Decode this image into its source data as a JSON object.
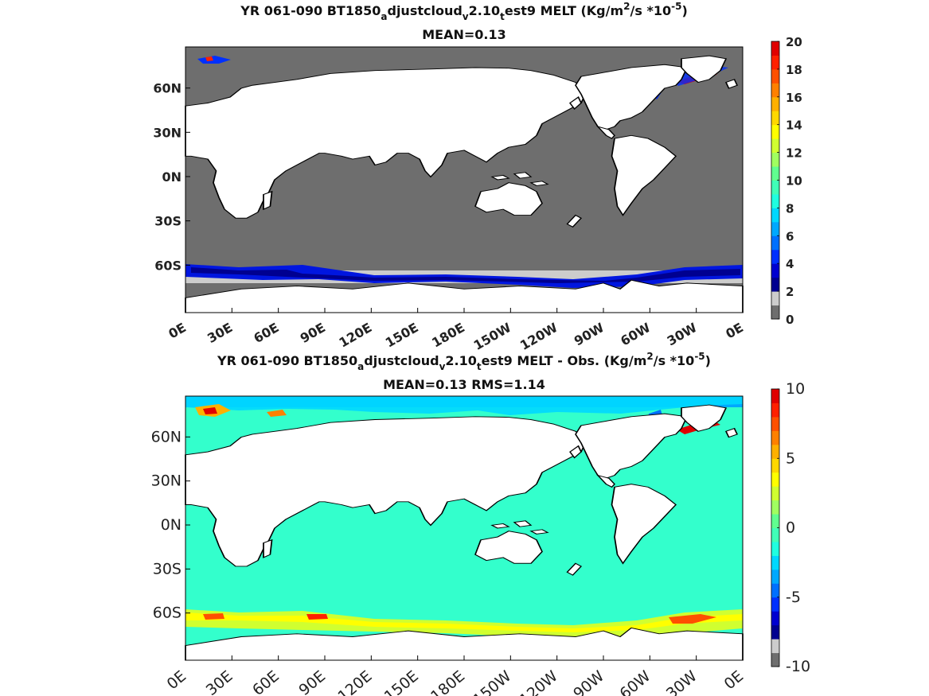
{
  "chart_data": [
    {
      "type": "heatmap",
      "title": {
        "parts": [
          "YR 061-090 BT1850",
          "a",
          "djustcloud",
          "v",
          "2.10",
          "t",
          "est9 MELT (Kg/m",
          "2",
          "/s   *10",
          "-5",
          ")"
        ],
        "line2": "MEAN=0.13"
      },
      "y_ticks": [
        "60N",
        "30N",
        "0N",
        "30S",
        "60S"
      ],
      "x_ticks": [
        "0E",
        "30E",
        "60E",
        "90E",
        "120E",
        "150E",
        "180E",
        "150W",
        "120W",
        "90W",
        "60W",
        "30W",
        "0E"
      ],
      "colorbar": {
        "ticks": [
          "0",
          "2",
          "4",
          "6",
          "8",
          "10",
          "12",
          "14",
          "16",
          "18",
          "20"
        ],
        "colors": [
          "#6e6e6e",
          "#cccccc",
          "#000090",
          "#0000d0",
          "#0030ff",
          "#0070ff",
          "#00a8ff",
          "#00d8ff",
          "#20ffe0",
          "#40ffb8",
          "#60ff90",
          "#a0ff60",
          "#d0ff30",
          "#ffff00",
          "#ffd800",
          "#ffb000",
          "#ff8000",
          "#ff5000",
          "#ff2000",
          "#e00000"
        ],
        "range": [
          0,
          20
        ]
      },
      "mean": 0.13
    },
    {
      "type": "heatmap",
      "title": {
        "parts": [
          "YR 061-090 BT1850",
          "a",
          "djustcloud",
          "v",
          "2.10",
          "t",
          "est9 MELT - Obs. (Kg/m",
          "2",
          "/s *10",
          "-5",
          ")"
        ],
        "line2": "MEAN=0.13   RMS=1.14"
      },
      "y_ticks": [
        "60N",
        "30N",
        "0N",
        "30S",
        "60S"
      ],
      "x_ticks": [
        "0E",
        "30E",
        "60E",
        "90E",
        "120E",
        "150E",
        "180E",
        "150W",
        "120W",
        "90W",
        "60W",
        "30W",
        "0E"
      ],
      "colorbar": {
        "ticks": [
          "10",
          "5",
          "0",
          "-5",
          "-10"
        ],
        "colors": [
          "#6e6e6e",
          "#cccccc",
          "#000090",
          "#0000d0",
          "#0030ff",
          "#0070ff",
          "#00a8ff",
          "#00d8ff",
          "#20ffe0",
          "#40ffb8",
          "#60ff90",
          "#a0ff60",
          "#d0ff30",
          "#ffff00",
          "#ffd800",
          "#ffb000",
          "#ff8000",
          "#ff5000",
          "#ff2000",
          "#e00000"
        ],
        "range": [
          -10,
          10
        ]
      },
      "mean": 0.13,
      "rms": 1.14
    }
  ],
  "colors": {
    "ocean_top": "#6e6e6e",
    "ocean_bottom": "#33ffcc",
    "land": "#ffffff",
    "coast": "#000000"
  }
}
